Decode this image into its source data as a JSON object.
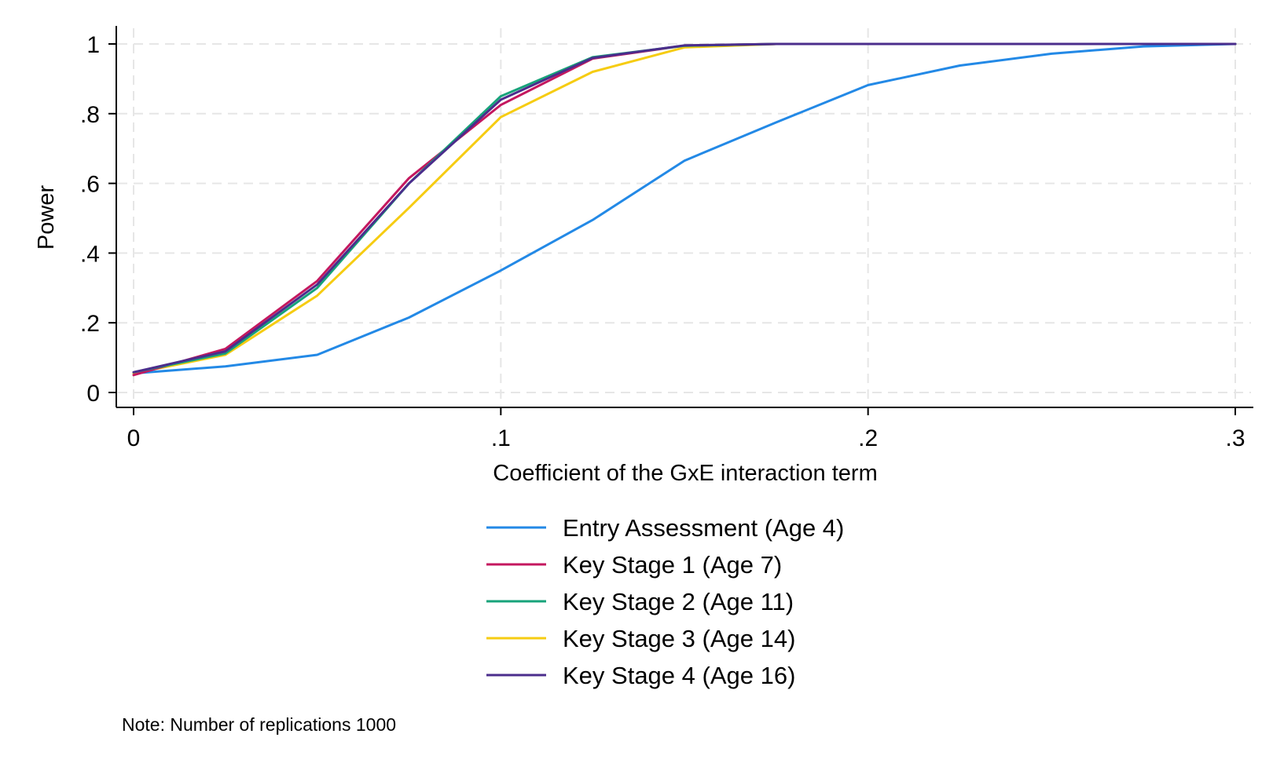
{
  "chart_data": {
    "type": "line",
    "xlabel": "Coefficient of the GxE  interaction term",
    "ylabel": "Power",
    "xlim": [
      0,
      0.3
    ],
    "ylim": [
      0,
      1
    ],
    "x_ticks": [
      {
        "value": 0,
        "label": "0"
      },
      {
        "value": 0.1,
        "label": ".1"
      },
      {
        "value": 0.2,
        "label": ".2"
      },
      {
        "value": 0.3,
        "label": ".3"
      }
    ],
    "y_ticks": [
      {
        "value": 0,
        "label": "0"
      },
      {
        "value": 0.2,
        "label": ".2"
      },
      {
        "value": 0.4,
        "label": ".4"
      },
      {
        "value": 0.6,
        "label": ".6"
      },
      {
        "value": 0.8,
        "label": ".8"
      },
      {
        "value": 1,
        "label": "1"
      }
    ],
    "grid": true,
    "legend_position": "bottom",
    "x": [
      0,
      0.025,
      0.05,
      0.075,
      0.1,
      0.125,
      0.15,
      0.175,
      0.2,
      0.225,
      0.25,
      0.275,
      0.3
    ],
    "series": [
      {
        "name": "Entry Assessment (Age 4)",
        "color": "#2389e6",
        "values": [
          0.055,
          0.075,
          0.108,
          0.215,
          0.35,
          0.495,
          0.665,
          0.775,
          0.882,
          0.938,
          0.972,
          0.993,
          1.0
        ]
      },
      {
        "name": "Key Stage 1 (Age 7)",
        "color": "#c4185f",
        "values": [
          0.05,
          0.125,
          0.32,
          0.615,
          0.825,
          0.958,
          0.995,
          1.0,
          1.0,
          1.0,
          1.0,
          1.0,
          1.0
        ]
      },
      {
        "name": "Key Stage 2 (Age 11)",
        "color": "#17a37a",
        "values": [
          0.058,
          0.112,
          0.3,
          0.6,
          0.85,
          0.962,
          0.995,
          1.0,
          1.0,
          1.0,
          1.0,
          1.0,
          1.0
        ]
      },
      {
        "name": "Key Stage 3 (Age 14)",
        "color": "#f6cc12",
        "values": [
          0.055,
          0.108,
          0.278,
          0.53,
          0.79,
          0.92,
          0.99,
          1.0,
          1.0,
          1.0,
          1.0,
          1.0,
          1.0
        ]
      },
      {
        "name": "Key Stage 4 (Age 16)",
        "color": "#4b2d8c",
        "values": [
          0.058,
          0.118,
          0.31,
          0.6,
          0.84,
          0.96,
          0.996,
          1.0,
          1.0,
          1.0,
          1.0,
          1.0,
          1.0
        ]
      }
    ],
    "note": "Note: Number of replications 1000"
  }
}
